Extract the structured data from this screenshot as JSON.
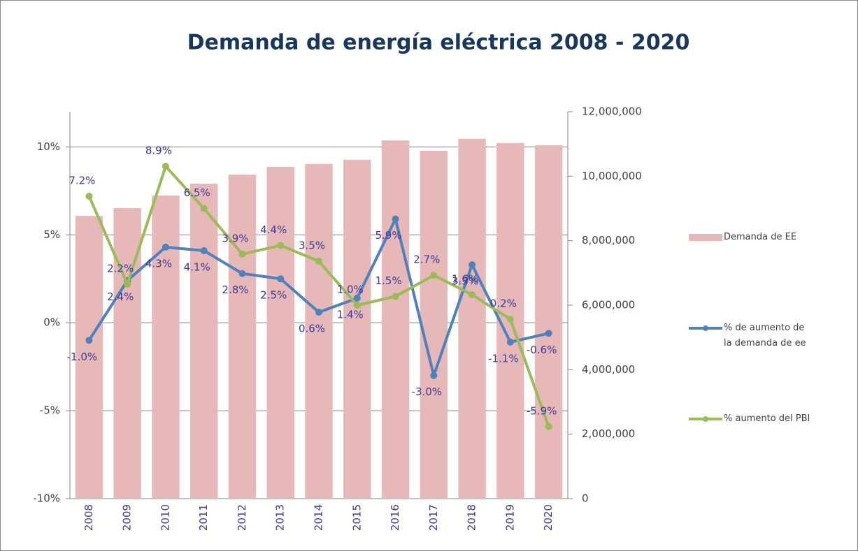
{
  "chart_data": {
    "type": "bar-line",
    "title": "Demanda de energía eléctrica 2008 - 2020",
    "categories": [
      "2008",
      "2009",
      "2010",
      "2011",
      "2012",
      "2013",
      "2014",
      "2015",
      "2016",
      "2017",
      "2018",
      "2019",
      "2020"
    ],
    "series": [
      {
        "name": "Demanda de EE",
        "type": "bar",
        "axis": "y2",
        "color": "#e6b9b8",
        "values": [
          8770000,
          9010000,
          9400000,
          9770000,
          10050000,
          10290000,
          10380000,
          10510000,
          11110000,
          10790000,
          11160000,
          11030000,
          10960000
        ]
      },
      {
        "name": "% de aumento de la demanda de ee",
        "type": "line",
        "color": "#4f81bd",
        "values": [
          -1.0,
          2.4,
          4.3,
          4.1,
          2.8,
          2.5,
          0.6,
          1.4,
          5.9,
          -3.0,
          3.3,
          -1.1,
          -0.6
        ],
        "value_labels": [
          "-1.0%",
          "2.4%",
          "4.3%",
          "4.1%",
          "2.8%",
          "2.5%",
          "0.6%",
          "1.4%",
          "5.9%",
          "-3.0%",
          "3.3%",
          "-1.1%",
          "-0.6%"
        ]
      },
      {
        "name": "% aumento del PBI",
        "type": "line",
        "color": "#9bbb59",
        "values": [
          7.2,
          2.2,
          8.9,
          6.5,
          3.9,
          4.4,
          3.5,
          1.0,
          1.5,
          2.7,
          1.6,
          0.2,
          -5.9
        ],
        "value_labels": [
          "7.2%",
          "2.2%",
          "8.9%",
          "6.5%",
          "3.9%",
          "4.4%",
          "3.5%",
          "1.0%",
          "1.5%",
          "2.7%",
          "1.6%",
          "0.2%",
          "-5.9%"
        ]
      }
    ],
    "ylim": [
      -10,
      12
    ],
    "yticks": [
      {
        "value": -10,
        "label": "-10%"
      },
      {
        "value": -5,
        "label": "-5%"
      },
      {
        "value": 0,
        "label": "0%"
      },
      {
        "value": 5,
        "label": "5%"
      },
      {
        "value": 10,
        "label": "10%"
      }
    ],
    "y2lim": [
      0,
      12000000
    ],
    "y2ticks": [
      0,
      {
        "value": 2000000,
        "label": "2,000,000"
      },
      {
        "value": 4000000,
        "label": "4,000,000"
      },
      {
        "value": 6000000,
        "label": "6,000,000"
      },
      {
        "value": 8000000,
        "label": "8,000,000"
      },
      {
        "value": 10000000,
        "label": "10,000,000"
      },
      {
        "value": 12000000,
        "label": "12,000,000"
      }
    ],
    "grid": true,
    "legend": "right"
  }
}
